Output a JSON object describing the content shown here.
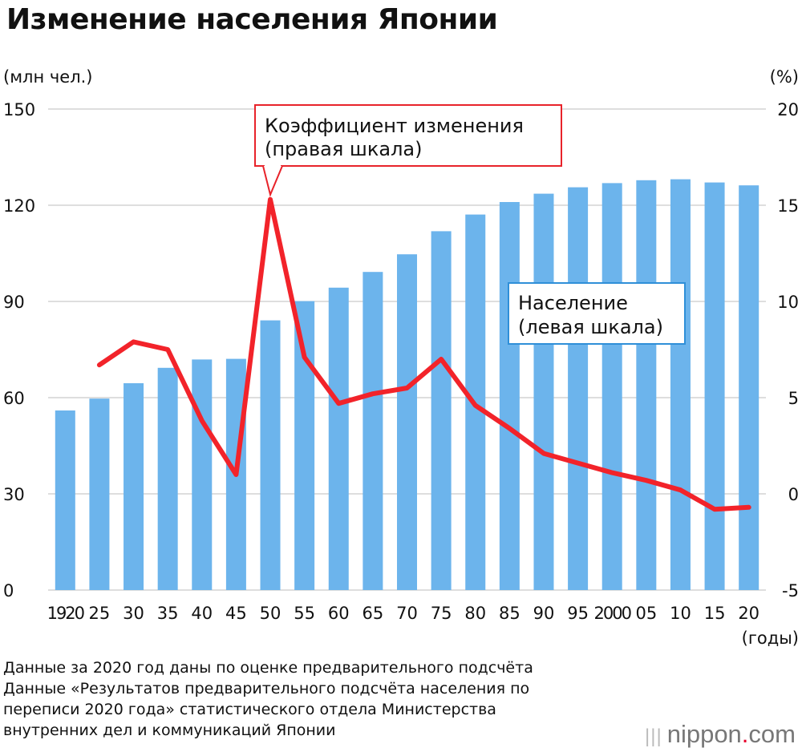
{
  "title": "Изменение населения Японии",
  "left_unit": "(млн чел.)",
  "right_unit": "(%)",
  "x_unit": "(годы)",
  "notes": [
    "Данные за 2020 год даны по оценке предварительного подсчёта",
    "Данные «Результатов предварительного подсчёта населения по",
    "переписи 2020 года» статистического отдела Министерства",
    "внутренних дел и коммуникаций Японии"
  ],
  "logo": {
    "name": "nippon",
    "dot": ".",
    "suffix": "com"
  },
  "colors": {
    "bar": "#6cb4ec",
    "line": "#f2232a",
    "grid": "#bdbdbd",
    "label_border_line": "#e8232a",
    "label_border_bar": "#2f8fd8"
  },
  "chart_data": {
    "type": "bar",
    "categories": [
      "1920",
      "25",
      "30",
      "35",
      "40",
      "45",
      "50",
      "55",
      "60",
      "65",
      "70",
      "75",
      "80",
      "85",
      "90",
      "95",
      "2000",
      "05",
      "10",
      "15",
      "20"
    ],
    "series": [
      {
        "name": "Население (левая шкала)",
        "type": "bar",
        "axis": "left",
        "values": [
          56.0,
          59.7,
          64.5,
          69.3,
          71.9,
          72.1,
          84.1,
          90.1,
          94.3,
          99.2,
          104.7,
          111.9,
          117.1,
          121.0,
          123.6,
          125.6,
          126.9,
          127.8,
          128.1,
          127.1,
          126.2
        ]
      },
      {
        "name": "Коэффициент изменения (правая шкала)",
        "type": "line",
        "axis": "right",
        "values": [
          null,
          6.7,
          7.9,
          7.5,
          3.8,
          1.0,
          15.3,
          7.1,
          4.7,
          5.2,
          5.5,
          7.0,
          4.6,
          3.4,
          2.1,
          1.6,
          1.1,
          0.7,
          0.2,
          -0.8,
          -0.7
        ]
      }
    ],
    "left_axis": {
      "ylim": [
        0,
        150
      ],
      "ticks": [
        "0",
        "30",
        "60",
        "90",
        "120",
        "150"
      ],
      "label": "(млн чел.)"
    },
    "right_axis": {
      "ylim": [
        -5,
        20
      ],
      "ticks": [
        "-5",
        "0",
        "5",
        "10",
        "15",
        "20"
      ],
      "label": "(%)"
    },
    "xlabel": "(годы)",
    "annotations": [
      {
        "text_lines": [
          "Коэффициент изменения",
          "(правая шкала)"
        ],
        "series": "line"
      },
      {
        "text_lines": [
          "Население",
          "(левая шкала)"
        ],
        "series": "bar"
      }
    ],
    "grid": true
  }
}
